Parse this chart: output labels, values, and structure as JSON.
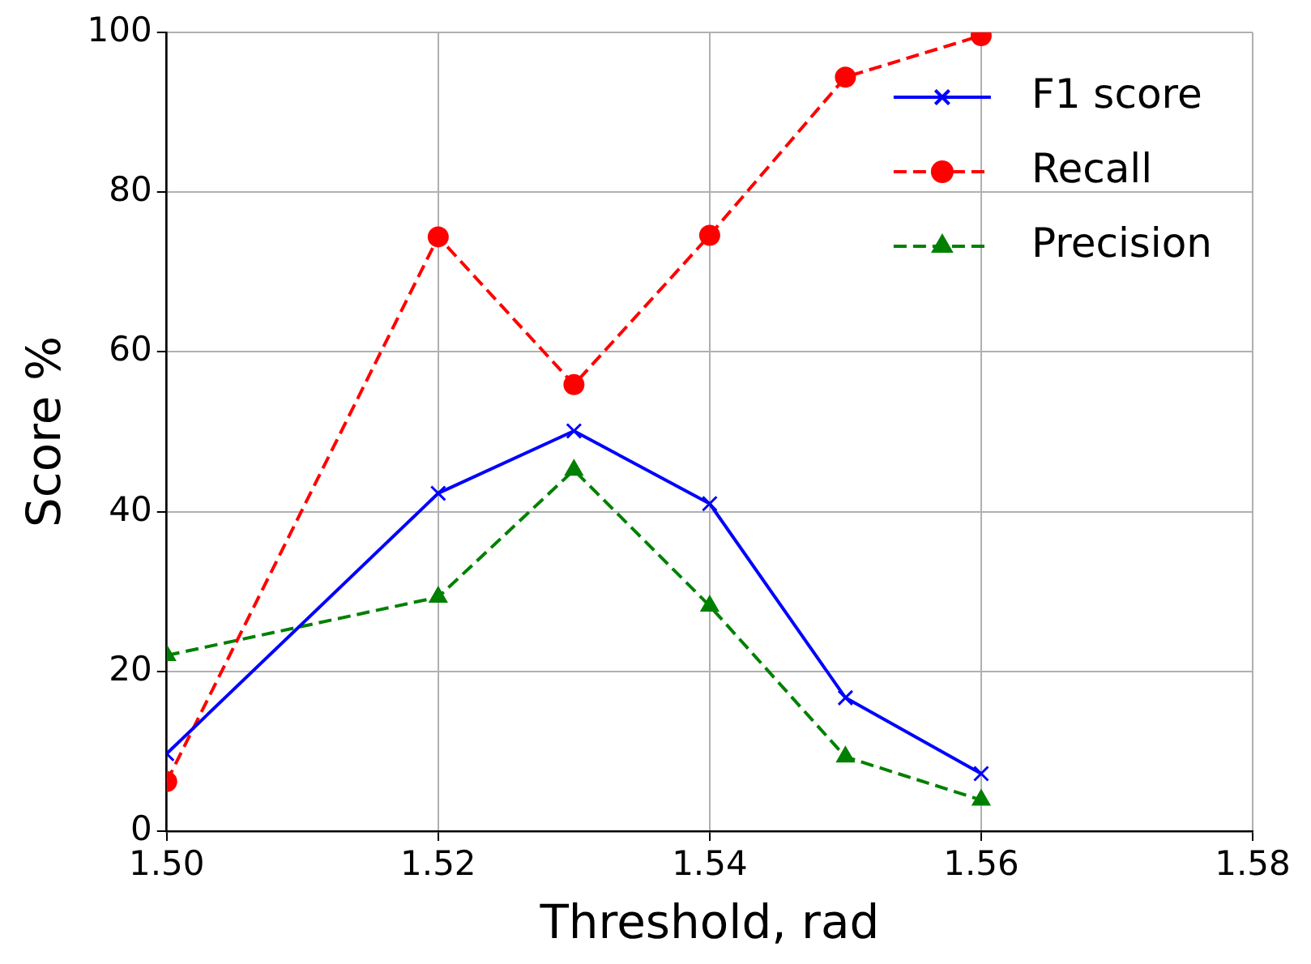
{
  "chart_data": {
    "type": "line",
    "xlabel": "Threshold, rad",
    "ylabel": "Score %",
    "x": [
      1.5,
      1.52,
      1.53,
      1.54,
      1.55,
      1.56
    ],
    "series": [
      {
        "name": "F1 score",
        "color": "#0000ff",
        "marker": "cross",
        "line_style": "solid",
        "values": [
          9.7,
          42.3,
          50.1,
          41,
          16.7,
          7.2
        ]
      },
      {
        "name": "Recall",
        "color": "#ff0000",
        "marker": "circle",
        "line_style": "dashed",
        "values": [
          6.2,
          74.4,
          55.9,
          74.6,
          94.4,
          99.6
        ]
      },
      {
        "name": "Precision",
        "color": "#008000",
        "marker": "triangle",
        "line_style": "dashed",
        "values": [
          22,
          29.3,
          45.2,
          28.2,
          9.3,
          3.9
        ]
      }
    ],
    "xlim": [
      1.5,
      1.58
    ],
    "xticks": [
      {
        "value": 1.5,
        "label": "1.50"
      },
      {
        "value": 1.52,
        "label": "1.52"
      },
      {
        "value": 1.54,
        "label": "1.54"
      },
      {
        "value": 1.56,
        "label": "1.56"
      },
      {
        "value": 1.58,
        "label": "1.58"
      }
    ],
    "ylim": [
      0,
      100
    ],
    "yticks": [
      0,
      20,
      40,
      60,
      80,
      100
    ],
    "grid": true,
    "legend": "top right"
  }
}
